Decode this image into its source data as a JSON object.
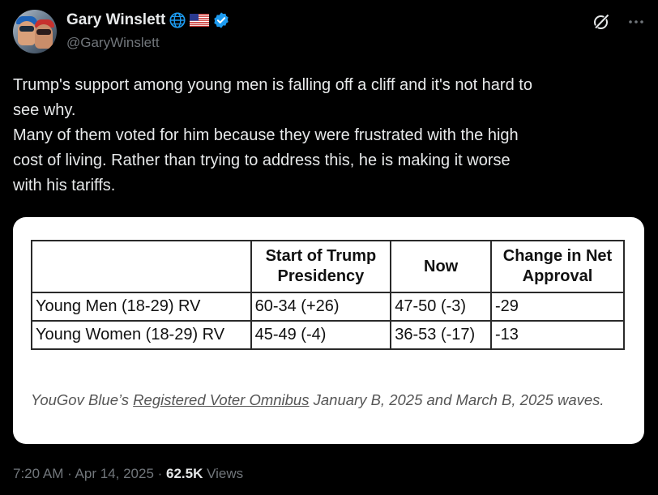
{
  "author": {
    "name": "Gary Winslett",
    "handle": "@GaryWinslett"
  },
  "tweet": {
    "text": "Trump's support among young men is falling off a cliff and it's not hard to\nsee why.\nMany of them voted for him because they were frustrated with the high\ncost of living. Rather than trying to address this, he is making it worse\nwith his tariffs."
  },
  "image": {
    "table": {
      "headers": [
        "",
        "Start of Trump Presidency",
        "Now",
        "Change in Net Approval"
      ],
      "rows": [
        {
          "group": "Young Men (18-29) RV",
          "start": "60-34 (+26)",
          "now": "47-50 (-3)",
          "change": "-29"
        },
        {
          "group": "Young Women (18-29) RV",
          "start": "45-49 (-4)",
          "now": "36-53 (-17)",
          "change": "-13"
        }
      ]
    },
    "caption": {
      "prefix": "YouGov Blue’s ",
      "link": "Registered Voter Omnibus",
      "suffix": " January B, 2025 and March B, 2025 waves."
    }
  },
  "meta": {
    "time": "7:20 AM · Apr 14, 2025 · ",
    "views_count": "62.5K",
    "views_label": " Views"
  },
  "colors": {
    "background": "#000000",
    "text": "#e7e9ea",
    "secondary": "#71767b",
    "verified": "#1d9bf0"
  }
}
